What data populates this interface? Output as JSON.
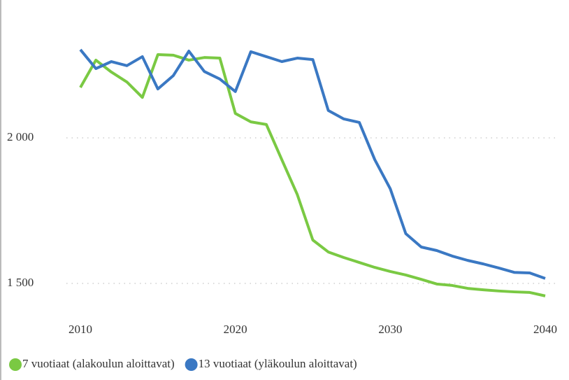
{
  "chart_data": {
    "type": "line",
    "x": [
      2010,
      2011,
      2012,
      2013,
      2014,
      2015,
      2016,
      2017,
      2018,
      2019,
      2020,
      2021,
      2022,
      2023,
      2024,
      2025,
      2026,
      2027,
      2028,
      2029,
      2030,
      2031,
      2032,
      2033,
      2034,
      2035,
      2036,
      2037,
      2038,
      2039,
      2040
    ],
    "series": [
      {
        "name": "7 vuotiaat (alakoulun aloittavat)",
        "color": "#7ac943",
        "values": [
          2173,
          2267,
          2226,
          2192,
          2139,
          2286,
          2284,
          2267,
          2276,
          2274,
          2084,
          2055,
          2046,
          1925,
          1805,
          1649,
          1608,
          1589,
          1572,
          1555,
          1541,
          1529,
          1514,
          1498,
          1493,
          1483,
          1478,
          1474,
          1471,
          1469,
          1457
        ]
      },
      {
        "name": "13 vuotiaat (yläkoulun aloittavat)",
        "color": "#3a78c3",
        "values": [
          2303,
          2238,
          2262,
          2248,
          2279,
          2168,
          2214,
          2298,
          2228,
          2202,
          2159,
          2296,
          2279,
          2262,
          2274,
          2269,
          2094,
          2065,
          2053,
          1925,
          1825,
          1671,
          1625,
          1613,
          1594,
          1579,
          1567,
          1553,
          1538,
          1536,
          1517
        ]
      }
    ],
    "xlim": [
      2010,
      2040
    ],
    "xticks": [
      2010,
      2020,
      2030,
      2040
    ],
    "ylim": [
      1400,
      2350
    ],
    "yticks": [
      {
        "value": 1500,
        "label": "1 500"
      },
      {
        "value": 2000,
        "label": "2 000"
      }
    ],
    "grid": true
  }
}
